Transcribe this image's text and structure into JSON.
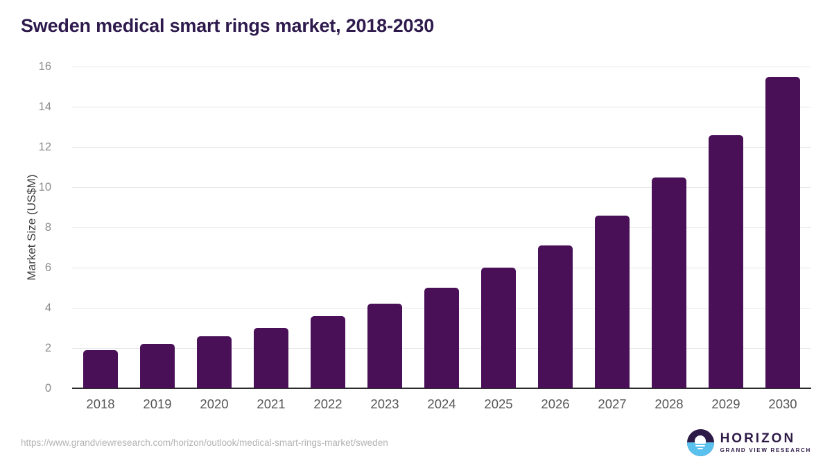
{
  "page": {
    "title": "Sweden medical smart rings market, 2018-2030"
  },
  "chart_data": {
    "type": "bar",
    "title": "Sweden medical smart rings market, 2018-2030",
    "categories": [
      "2018",
      "2019",
      "2020",
      "2021",
      "2022",
      "2023",
      "2024",
      "2025",
      "2026",
      "2027",
      "2028",
      "2029",
      "2030"
    ],
    "values": [
      1.9,
      2.2,
      2.6,
      3.0,
      3.6,
      4.2,
      5.0,
      6.0,
      7.1,
      8.6,
      10.5,
      12.6,
      15.5
    ],
    "xlabel": "",
    "ylabel": "Market Size (US$M)",
    "ylim": [
      0,
      16
    ],
    "ytick_step": 2,
    "grid": "horizontal",
    "legend": "none",
    "bar_color": "#491058"
  },
  "footer": {
    "source_url": "https://www.grandviewresearch.com/horizon/outlook/medical-smart-rings-market/sweden",
    "logo": {
      "name": "HORIZON",
      "subtitle": "GRAND VIEW RESEARCH"
    }
  },
  "colors": {
    "bar": "#491058",
    "title_text": "#2e1a4d",
    "grid_line": "#e7e7e7",
    "axis_line": "#2b2b2b",
    "y_tick_text": "#8c8c8c",
    "x_tick_text": "#565656",
    "source_text": "#b3b3b3",
    "logo_purple": "#2e1a47",
    "logo_blue": "#5ac1ee"
  }
}
